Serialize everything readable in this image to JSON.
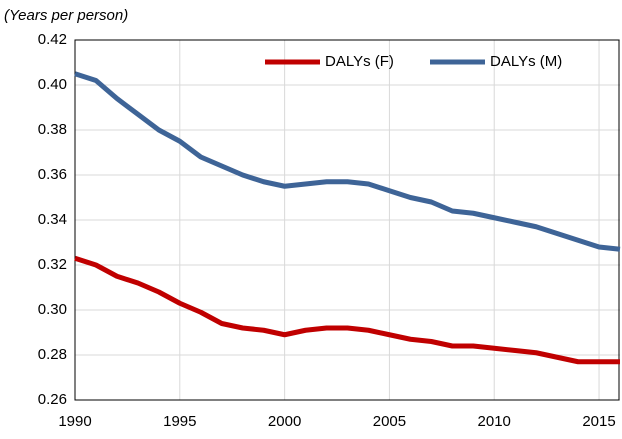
{
  "chart_data": {
    "type": "line",
    "annotation": "(Years per person)",
    "x": [
      1990,
      1991,
      1992,
      1993,
      1994,
      1995,
      1996,
      1997,
      1998,
      1999,
      2000,
      2001,
      2002,
      2003,
      2004,
      2005,
      2006,
      2007,
      2008,
      2009,
      2010,
      2011,
      2012,
      2013,
      2014,
      2015,
      2016
    ],
    "series": [
      {
        "name": "DALYs (F)",
        "color": "#c00000",
        "values": [
          0.323,
          0.32,
          0.315,
          0.312,
          0.308,
          0.303,
          0.299,
          0.294,
          0.292,
          0.291,
          0.289,
          0.291,
          0.292,
          0.292,
          0.291,
          0.289,
          0.287,
          0.286,
          0.284,
          0.284,
          0.283,
          0.282,
          0.281,
          0.279,
          0.277,
          0.277,
          0.277
        ]
      },
      {
        "name": "DALYs (M)",
        "color": "#3e6497",
        "values": [
          0.405,
          0.402,
          0.394,
          0.387,
          0.38,
          0.375,
          0.368,
          0.364,
          0.36,
          0.357,
          0.355,
          0.356,
          0.357,
          0.357,
          0.356,
          0.353,
          0.35,
          0.348,
          0.344,
          0.343,
          0.341,
          0.339,
          0.337,
          0.334,
          0.331,
          0.328,
          0.327
        ]
      }
    ],
    "xlim": [
      1990,
      2016
    ],
    "xticks": [
      1990,
      1995,
      2000,
      2005,
      2010,
      2015
    ],
    "ylim": [
      0.26,
      0.42
    ],
    "yticks": [
      0.26,
      0.28,
      {
        "value": 0.3,
        "label": "0.30"
      },
      0.32,
      0.34,
      0.36,
      0.38,
      {
        "value": 0.4,
        "label": "0.40"
      },
      0.42
    ],
    "grid": true,
    "legend": "top-right"
  }
}
